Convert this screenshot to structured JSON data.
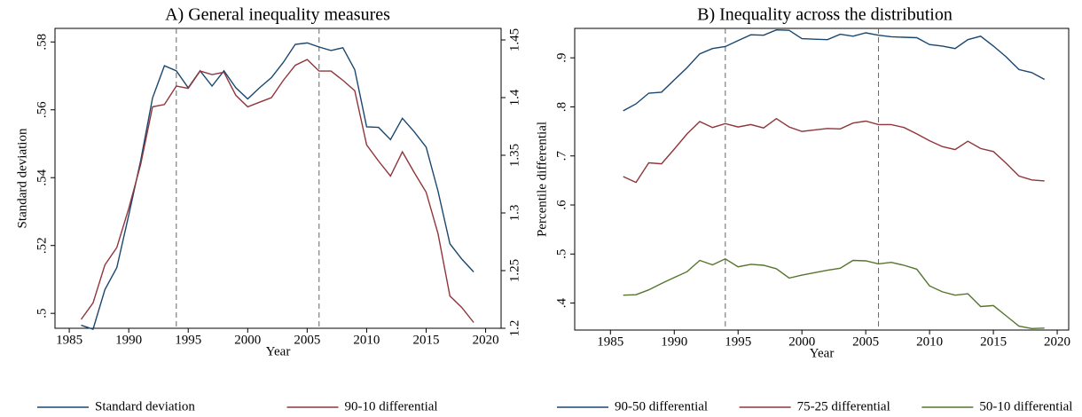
{
  "chart_data": [
    {
      "type": "line",
      "title": "A) General inequality measures",
      "x_label": "Year",
      "y_label": "Standard deviation",
      "x": [
        1986,
        1987,
        1988,
        1989,
        1990,
        1991,
        1992,
        1993,
        1994,
        1995,
        1996,
        1997,
        1998,
        1999,
        2000,
        2001,
        2002,
        2003,
        2004,
        2005,
        2006,
        2007,
        2008,
        2009,
        2010,
        2011,
        2012,
        2013,
        2014,
        2015,
        2016,
        2017,
        2018,
        2019
      ],
      "xlim": [
        1983.8,
        2021.3
      ],
      "xticks": [
        1985,
        1990,
        1995,
        2000,
        2005,
        2010,
        2015,
        2020
      ],
      "ylim": [
        0.4956,
        0.584
      ],
      "yticks": [
        {
          "value": 0.5,
          "label": ".5"
        },
        {
          "value": 0.52,
          "label": ".52"
        },
        {
          "value": 0.54,
          "label": ".54"
        },
        {
          "value": 0.56,
          "label": ".56"
        },
        {
          "value": 0.58,
          "label": ".58"
        }
      ],
      "y2lim": [
        1.2,
        1.46
      ],
      "y2ticks": [
        1.2,
        1.25,
        1.3,
        1.35,
        1.4,
        1.45
      ],
      "vlines": [
        1994,
        2006
      ],
      "legend": "bottom",
      "series": [
        {
          "name": "Standard deviation",
          "color": "#1a476f",
          "values": [
            0.4965,
            0.4953,
            0.507,
            0.5135,
            0.529,
            0.545,
            0.5635,
            0.573,
            0.5715,
            0.5665,
            0.5715,
            0.567,
            0.5715,
            0.5665,
            0.5632,
            0.5665,
            0.5695,
            0.574,
            0.5793,
            0.5797,
            0.5785,
            0.5775,
            0.5783,
            0.5718,
            0.555,
            0.5548,
            0.5512,
            0.5575,
            0.5535,
            0.549,
            0.536,
            0.5205,
            0.516,
            0.5122
          ]
        },
        {
          "name": "90-10 differential",
          "color": "#90353b",
          "axis": "y2",
          "values": [
            1.2077,
            1.222,
            1.255,
            1.27,
            1.304,
            1.342,
            1.392,
            1.394,
            1.41,
            1.408,
            1.423,
            1.42,
            1.422,
            1.402,
            1.392,
            1.396,
            1.4,
            1.415,
            1.428,
            1.433,
            1.423,
            1.423,
            1.415,
            1.406,
            1.359,
            1.345,
            1.332,
            1.353,
            1.335,
            1.318,
            1.282,
            1.228,
            1.218,
            1.205
          ]
        }
      ]
    },
    {
      "type": "line",
      "title": "B) Inequality across the distribution",
      "x_label": "Year",
      "y_label": "Percentile differential",
      "x": [
        1986,
        1987,
        1988,
        1989,
        1990,
        1991,
        1992,
        1993,
        1994,
        1995,
        1996,
        1997,
        1998,
        1999,
        2000,
        2001,
        2002,
        2003,
        2004,
        2005,
        2006,
        2007,
        2008,
        2009,
        2010,
        2011,
        2012,
        2013,
        2014,
        2015,
        2016,
        2017,
        2018,
        2019
      ],
      "xlim": [
        1982.2,
        2020.9
      ],
      "xticks": [
        1985,
        1990,
        1995,
        2000,
        2005,
        2010,
        2015,
        2020
      ],
      "ylim": [
        0.345,
        0.96
      ],
      "yticks": [
        {
          "value": 0.4,
          "label": ".4"
        },
        {
          "value": 0.5,
          "label": ".5"
        },
        {
          "value": 0.6,
          "label": ".6"
        },
        {
          "value": 0.7,
          "label": ".7"
        },
        {
          "value": 0.8,
          "label": ".8"
        },
        {
          "value": 0.9,
          "label": ".9"
        }
      ],
      "vlines": [
        1994,
        2006
      ],
      "legend": "bottom",
      "series": [
        {
          "name": "90-50 differential",
          "color": "#1a476f",
          "values": [
            0.792,
            0.806,
            0.828,
            0.83,
            0.855,
            0.88,
            0.908,
            0.919,
            0.923,
            0.935,
            0.947,
            0.946,
            0.957,
            0.956,
            0.939,
            0.938,
            0.937,
            0.948,
            0.944,
            0.951,
            0.946,
            0.943,
            0.942,
            0.941,
            0.927,
            0.924,
            0.919,
            0.937,
            0.944,
            0.924,
            0.902,
            0.876,
            0.87,
            0.856
          ]
        },
        {
          "name": "75-25 differential",
          "color": "#90353b",
          "values": [
            0.658,
            0.646,
            0.686,
            0.684,
            0.714,
            0.745,
            0.77,
            0.758,
            0.766,
            0.759,
            0.764,
            0.757,
            0.776,
            0.759,
            0.75,
            0.753,
            0.756,
            0.755,
            0.767,
            0.771,
            0.764,
            0.764,
            0.758,
            0.745,
            0.731,
            0.719,
            0.713,
            0.73,
            0.715,
            0.709,
            0.685,
            0.659,
            0.651,
            0.649
          ]
        },
        {
          "name": "50-10 differential",
          "color": "#55752f",
          "values": [
            0.416,
            0.417,
            0.427,
            0.44,
            0.452,
            0.464,
            0.487,
            0.478,
            0.49,
            0.474,
            0.479,
            0.477,
            0.47,
            0.451,
            0.457,
            0.462,
            0.467,
            0.471,
            0.487,
            0.486,
            0.48,
            0.483,
            0.477,
            0.469,
            0.435,
            0.423,
            0.416,
            0.419,
            0.393,
            0.395,
            0.374,
            0.353,
            0.348,
            0.349
          ]
        }
      ]
    }
  ]
}
